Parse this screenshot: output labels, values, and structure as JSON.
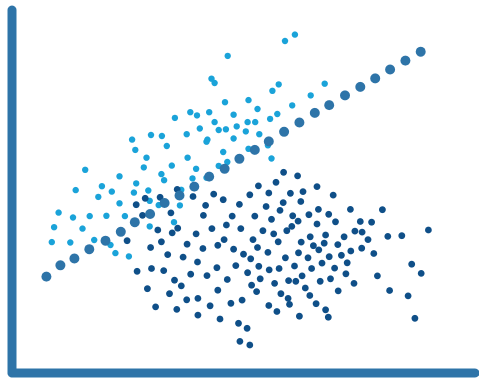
{
  "chart_data": {
    "type": "scatter",
    "title": "",
    "xlabel": "",
    "ylabel": "",
    "xlim": [
      0,
      100
    ],
    "ylim": [
      0,
      100
    ],
    "grid": false,
    "axis_color": "#2E74A8",
    "series": [
      {
        "color": "#1AA3D9",
        "points": [
          [
            59.2,
            91.3
          ],
          [
            61.4,
            93.1
          ],
          [
            46.5,
            87.1
          ],
          [
            42.9,
            80.7
          ],
          [
            43.6,
            79.5
          ],
          [
            56.4,
            77.3
          ],
          [
            57.8,
            79.1
          ],
          [
            68.0,
            79.3
          ],
          [
            64.9,
            76.0
          ],
          [
            45.9,
            74.1
          ],
          [
            51.1,
            74.7
          ],
          [
            53.1,
            72.2
          ],
          [
            47.8,
            70.6
          ],
          [
            57.5,
            70.8
          ],
          [
            60.8,
            73.2
          ],
          [
            39.7,
            70.4
          ],
          [
            34.8,
            69.7
          ],
          [
            38.2,
            71.3
          ],
          [
            42.4,
            71.3
          ],
          [
            43.6,
            68.5
          ],
          [
            40.3,
            66.7
          ],
          [
            31.9,
            64.6
          ],
          [
            29.5,
            64.9
          ],
          [
            37.4,
            65.1
          ],
          [
            44.5,
            66.3
          ],
          [
            46.1,
            66.5
          ],
          [
            50.9,
            68.5
          ],
          [
            52.6,
            68.5
          ],
          [
            55.9,
            69.4
          ],
          [
            48.5,
            67.3
          ],
          [
            42.0,
            63.6
          ],
          [
            50.5,
            65.9
          ],
          [
            53.5,
            65.1
          ],
          [
            25.3,
            63.6
          ],
          [
            26.0,
            60.7
          ],
          [
            33.0,
            61.8
          ],
          [
            28.5,
            58.5
          ],
          [
            41.8,
            63.0
          ],
          [
            47.8,
            63.9
          ],
          [
            55.4,
            62.0
          ],
          [
            56.2,
            58.3
          ],
          [
            51.1,
            61.0
          ],
          [
            45.5,
            60.1
          ],
          [
            37.6,
            58.5
          ],
          [
            34.1,
            56.3
          ],
          [
            27.9,
            55.8
          ],
          [
            31.8,
            53.9
          ],
          [
            39.5,
            55.4
          ],
          [
            44.5,
            56.2
          ],
          [
            46.4,
            57.3
          ],
          [
            14.9,
            55.1
          ],
          [
            22.5,
            53.3
          ],
          [
            26.2,
            51.3
          ],
          [
            38.7,
            52.7
          ],
          [
            41.8,
            52.9
          ],
          [
            32.4,
            52.2
          ],
          [
            18.6,
            50.5
          ],
          [
            20.8,
            49.0
          ],
          [
            25.7,
            48.7
          ],
          [
            28.9,
            49.3
          ],
          [
            36.2,
            49.5
          ],
          [
            12.8,
            49.4
          ],
          [
            17.8,
            47.5
          ],
          [
            22.5,
            45.7
          ],
          [
            29.2,
            46.4
          ],
          [
            31.2,
            45.2
          ],
          [
            35.9,
            45.1
          ],
          [
            9.0,
            43.1
          ],
          [
            12.2,
            41.7
          ],
          [
            15.9,
            42.1
          ],
          [
            19.6,
            42.2
          ],
          [
            23.7,
            42.1
          ],
          [
            8.0,
            39.0
          ],
          [
            14.3,
            38.6
          ],
          [
            29.2,
            39.2
          ],
          [
            34.6,
            40.4
          ],
          [
            7.5,
            34.8
          ],
          [
            11.6,
            34.7
          ],
          [
            16.9,
            35.4
          ],
          [
            21.6,
            31.7
          ],
          [
            24.6,
            30.8
          ],
          [
            20.5,
            34.0
          ]
        ]
      },
      {
        "color": "#0F4F88",
        "points": [
          [
            58.9,
            54.4
          ],
          [
            62.0,
            53.4
          ],
          [
            66.3,
            50.4
          ],
          [
            69.9,
            48.0
          ],
          [
            73.7,
            44.0
          ],
          [
            75.9,
            40.6
          ],
          [
            76.3,
            37.6
          ],
          [
            78.4,
            40.4
          ],
          [
            80.8,
            43.9
          ],
          [
            82.0,
            36.4
          ],
          [
            85.1,
            36.6
          ],
          [
            87.3,
            28.6
          ],
          [
            89.4,
            26.0
          ],
          [
            91.0,
            38.2
          ],
          [
            86.5,
            19.7
          ],
          [
            88.0,
            13.4
          ],
          [
            82.4,
            21.2
          ],
          [
            79.7,
            25.3
          ],
          [
            78.9,
            31.6
          ],
          [
            76.2,
            33.1
          ],
          [
            73.0,
            29.0
          ],
          [
            70.2,
            27.5
          ],
          [
            67.0,
            23.8
          ],
          [
            68.2,
            15.8
          ],
          [
            68.8,
            13.7
          ],
          [
            66.1,
            17.5
          ],
          [
            63.7,
            21.9
          ],
          [
            61.6,
            23.8
          ],
          [
            59.9,
            19.0
          ],
          [
            58.3,
            20.3
          ],
          [
            56.9,
            23.2
          ],
          [
            55.7,
            27.0
          ],
          [
            53.4,
            28.0
          ],
          [
            51.8,
            22.7
          ],
          [
            49.7,
            18.5
          ],
          [
            47.2,
            17.6
          ],
          [
            48.9,
            12.0
          ],
          [
            50.8,
            10.6
          ],
          [
            44.3,
            21.3
          ],
          [
            41.9,
            25.4
          ],
          [
            39.8,
            29.2
          ],
          [
            38.3,
            25.8
          ],
          [
            36.2,
            22.5
          ],
          [
            37.4,
            18.6
          ],
          [
            39.9,
            19.0
          ],
          [
            36.6,
            30.6
          ],
          [
            33.2,
            31.3
          ],
          [
            31.8,
            34.9
          ],
          [
            34.2,
            37.4
          ],
          [
            31.0,
            38.2
          ],
          [
            27.6,
            42.3
          ],
          [
            26.2,
            45.3
          ],
          [
            28.2,
            47.1
          ],
          [
            31.5,
            47.4
          ],
          [
            35.3,
            49.6
          ],
          [
            38.8,
            47.6
          ],
          [
            41.6,
            45.1
          ],
          [
            43.4,
            48.3
          ],
          [
            45.5,
            46.7
          ],
          [
            47.5,
            42.1
          ],
          [
            49.1,
            45.4
          ],
          [
            51.4,
            48.1
          ],
          [
            53.3,
            50.6
          ],
          [
            55.6,
            48.6
          ],
          [
            57.2,
            51.6
          ],
          [
            60.4,
            48.5
          ],
          [
            62.7,
            46.2
          ],
          [
            64.5,
            42.5
          ],
          [
            66.3,
            39.9
          ],
          [
            68.2,
            36.8
          ],
          [
            70.4,
            40.5
          ],
          [
            72.3,
            36.3
          ],
          [
            73.8,
            32.3
          ],
          [
            71.7,
            31.1
          ],
          [
            69.0,
            30.7
          ],
          [
            66.7,
            32.6
          ],
          [
            64.3,
            30.4
          ],
          [
            62.8,
            34.8
          ],
          [
            60.7,
            39.2
          ],
          [
            58.1,
            43.7
          ],
          [
            56.2,
            41.2
          ],
          [
            54.3,
            38.0
          ],
          [
            52.1,
            35.5
          ],
          [
            50.0,
            31.4
          ],
          [
            47.8,
            32.8
          ],
          [
            45.7,
            35.5
          ],
          [
            43.0,
            38.6
          ],
          [
            41.0,
            33.0
          ],
          [
            44.1,
            27.6
          ],
          [
            46.4,
            24.3
          ],
          [
            48.3,
            28.2
          ],
          [
            50.9,
            26.2
          ],
          [
            53.7,
            24.5
          ],
          [
            55.4,
            31.9
          ],
          [
            57.7,
            34.9
          ],
          [
            59.3,
            30.4
          ],
          [
            61.3,
            28.1
          ],
          [
            63.0,
            25.3
          ],
          [
            65.1,
            27.4
          ],
          [
            67.4,
            28.9
          ],
          [
            69.3,
            24.5
          ],
          [
            71.0,
            21.1
          ],
          [
            72.7,
            25.9
          ],
          [
            74.5,
            23.2
          ],
          [
            59.6,
            38.0
          ],
          [
            60.9,
            42.2
          ],
          [
            55.0,
            44.8
          ],
          [
            52.5,
            42.1
          ],
          [
            49.4,
            38.6
          ],
          [
            46.2,
            39.6
          ],
          [
            58.8,
            45.9
          ],
          [
            62.1,
            40.7
          ],
          [
            64.8,
            36.3
          ],
          [
            66.6,
            44.0
          ],
          [
            68.9,
            42.6
          ],
          [
            63.2,
            49.0
          ],
          [
            56.7,
            37.1
          ],
          [
            53.1,
            33.3
          ],
          [
            51.6,
            30.1
          ],
          [
            57.9,
            27.4
          ],
          [
            60.0,
            24.0
          ],
          [
            62.2,
            31.8
          ],
          [
            65.5,
            33.8
          ],
          [
            67.9,
            34.5
          ],
          [
            70.9,
            34.1
          ],
          [
            52.9,
            20.9
          ],
          [
            55.6,
            17.0
          ],
          [
            57.4,
            15.3
          ],
          [
            60.2,
            17.3
          ],
          [
            62.4,
            14.0
          ],
          [
            64.7,
            19.8
          ],
          [
            42.6,
            16.9
          ],
          [
            39.9,
            14.3
          ],
          [
            44.8,
            13.2
          ],
          [
            35.2,
            15.9
          ],
          [
            33.6,
            20.3
          ],
          [
            29.6,
            27.4
          ],
          [
            24.2,
            35.2
          ],
          [
            26.4,
            26.6
          ],
          [
            49.2,
            6.9
          ],
          [
            51.4,
            5.9
          ],
          [
            44.3,
            33.9
          ],
          [
            74.7,
            37.9
          ],
          [
            77.6,
            35.5
          ],
          [
            41.1,
            42.3
          ],
          [
            39.5,
            37.1
          ],
          [
            37.5,
            34.2
          ],
          [
            35.4,
            38.7
          ],
          [
            33.9,
            43.0
          ],
          [
            29.4,
            33.3
          ],
          [
            32.3,
            26.8
          ],
          [
            34.7,
            24.1
          ],
          [
            28.7,
            21.7
          ],
          [
            30.5,
            16.6
          ]
        ]
      },
      {
        "color": "#2E74A8",
        "points": [
          [
            6.3,
            25.1
          ],
          [
            9.4,
            28.3
          ],
          [
            12.5,
            30.2
          ],
          [
            15.8,
            32.8
          ],
          [
            19.4,
            35.2
          ],
          [
            22.8,
            37.7
          ],
          [
            25.9,
            40.4
          ],
          [
            29.3,
            42.7
          ],
          [
            32.5,
            45.8
          ],
          [
            35.8,
            47.9
          ],
          [
            39.1,
            50.4
          ],
          [
            42.4,
            53.2
          ],
          [
            45.8,
            55.4
          ],
          [
            49.1,
            58.2
          ],
          [
            52.5,
            60.7
          ],
          [
            55.6,
            63.1
          ],
          [
            59.0,
            65.8
          ],
          [
            62.4,
            68.4
          ],
          [
            65.8,
            71.1
          ],
          [
            69.0,
            73.3
          ],
          [
            72.5,
            76.0
          ],
          [
            75.9,
            78.4
          ],
          [
            79.2,
            80.8
          ],
          [
            82.5,
            83.3
          ],
          [
            85.9,
            85.8
          ],
          [
            89.3,
            88.3
          ]
        ]
      }
    ]
  }
}
